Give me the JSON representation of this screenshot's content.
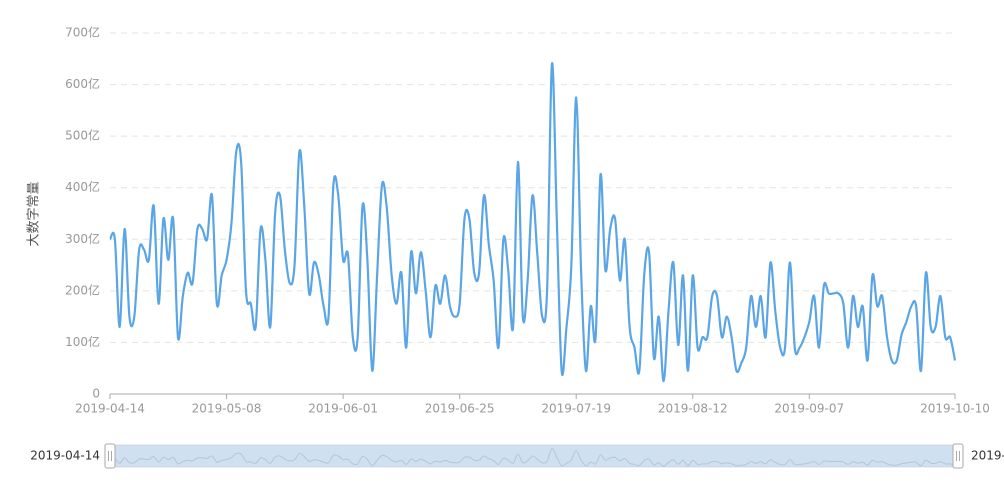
{
  "chart_data": {
    "type": "line",
    "smooth": true,
    "y_label": "大数字常量",
    "categories": [
      "2019-04-14",
      null,
      null,
      null,
      null,
      null,
      null,
      null,
      null,
      null,
      null,
      null,
      null,
      null,
      null,
      null,
      null,
      null,
      null,
      null,
      null,
      null,
      null,
      null,
      "2019-05-08",
      null,
      null,
      null,
      null,
      null,
      null,
      null,
      null,
      null,
      null,
      null,
      null,
      null,
      null,
      null,
      null,
      null,
      null,
      null,
      null,
      null,
      null,
      null,
      "2019-06-01",
      null,
      null,
      null,
      null,
      null,
      null,
      null,
      null,
      null,
      null,
      null,
      null,
      null,
      null,
      null,
      null,
      null,
      null,
      null,
      null,
      null,
      null,
      null,
      "2019-06-25",
      null,
      null,
      null,
      null,
      null,
      null,
      null,
      null,
      null,
      null,
      null,
      null,
      null,
      null,
      null,
      null,
      null,
      null,
      null,
      null,
      null,
      null,
      null,
      "2019-07-19",
      null,
      null,
      null,
      null,
      null,
      null,
      null,
      null,
      null,
      null,
      null,
      null,
      null,
      null,
      null,
      null,
      null,
      null,
      null,
      null,
      null,
      null,
      null,
      "2019-08-12",
      null,
      null,
      null,
      null,
      null,
      null,
      null,
      null,
      null,
      null,
      null,
      null,
      null,
      null,
      null,
      null,
      null,
      null,
      null,
      null,
      null,
      null,
      null,
      "2019-09-07",
      null,
      null,
      null,
      null,
      null,
      null,
      null,
      null,
      null,
      null,
      null,
      null,
      null,
      null,
      null,
      null,
      null,
      null,
      null,
      null,
      null,
      null,
      null,
      null,
      null,
      null,
      null,
      null,
      null,
      "2019-10-10"
    ],
    "values": [
      300,
      300,
      130,
      320,
      150,
      150,
      280,
      280,
      260,
      365,
      175,
      340,
      260,
      340,
      110,
      190,
      235,
      215,
      320,
      320,
      300,
      385,
      175,
      230,
      260,
      330,
      470,
      450,
      200,
      175,
      130,
      320,
      260,
      130,
      350,
      385,
      280,
      215,
      250,
      470,
      365,
      195,
      255,
      230,
      170,
      150,
      405,
      385,
      260,
      270,
      110,
      110,
      365,
      260,
      45,
      230,
      405,
      360,
      230,
      175,
      235,
      90,
      275,
      195,
      275,
      200,
      110,
      210,
      175,
      230,
      170,
      150,
      175,
      340,
      340,
      235,
      235,
      385,
      290,
      220,
      90,
      300,
      240,
      130,
      450,
      150,
      220,
      385,
      270,
      150,
      200,
      640,
      340,
      45,
      130,
      250,
      575,
      240,
      45,
      170,
      110,
      425,
      240,
      320,
      340,
      220,
      300,
      130,
      90,
      45,
      230,
      275,
      70,
      150,
      25,
      160,
      255,
      95,
      230,
      45,
      230,
      90,
      110,
      110,
      190,
      190,
      110,
      150,
      110,
      45,
      60,
      90,
      190,
      130,
      190,
      110,
      255,
      160,
      90,
      90,
      255,
      90,
      90,
      110,
      140,
      190,
      90,
      210,
      195,
      195,
      195,
      175,
      90,
      190,
      130,
      170,
      65,
      230,
      170,
      190,
      110,
      65,
      65,
      115,
      140,
      170,
      170,
      45,
      235,
      130,
      130,
      190,
      110,
      110,
      65
    ],
    "color": "#5aa5e6",
    "ylim": [
      0,
      700
    ],
    "yticks": [
      0,
      {
        "value": 100,
        "label": "100亿"
      },
      {
        "value": 200,
        "label": "200亿"
      },
      {
        "value": 300,
        "label": "300亿"
      },
      {
        "value": 400,
        "label": "400亿"
      },
      {
        "value": 500,
        "label": "500亿"
      },
      {
        "value": 600,
        "label": "600亿"
      },
      {
        "value": 700,
        "label": "700亿"
      }
    ],
    "grid": true,
    "zoom": true
  }
}
